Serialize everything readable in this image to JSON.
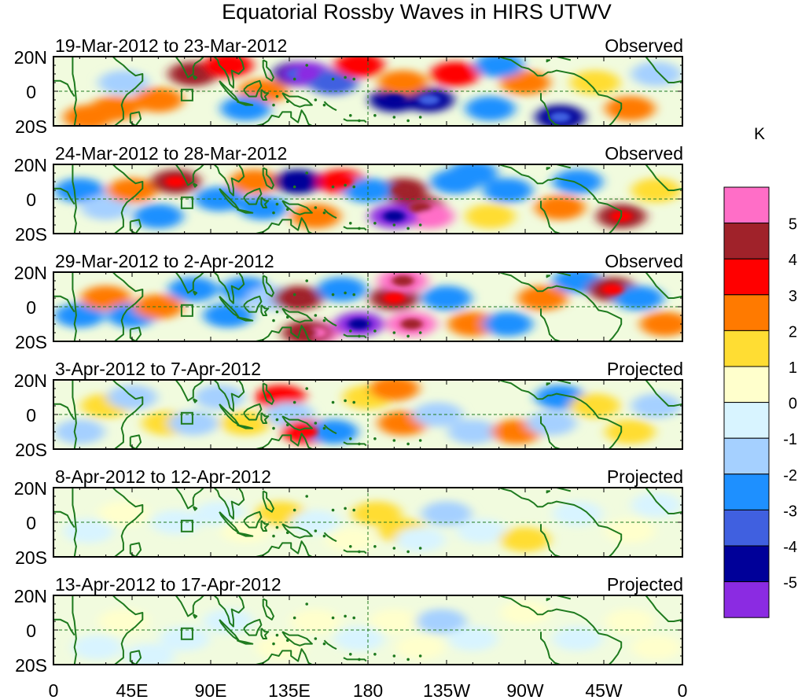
{
  "title": "Equatorial Rossby Waves in HIRS UTWV",
  "colorbar": {
    "unit": "K",
    "labels": [
      "5",
      "4",
      "3",
      "2",
      "1",
      "0",
      "-1",
      "-2",
      "-3",
      "-4",
      "-5"
    ],
    "colors": [
      "#ff6ec7",
      "#a0222a",
      "#ff0000",
      "#ff7a00",
      "#ffdd33",
      "#ffffcc",
      "#d8f4ff",
      "#a5d0ff",
      "#1e90ff",
      "#4060e0",
      "#000099",
      "#8b2be2"
    ]
  },
  "axes": {
    "lat_labels": [
      "20N",
      "0",
      "20S"
    ],
    "lon_labels": [
      "0",
      "45E",
      "90E",
      "135E",
      "180",
      "135W",
      "90W",
      "45W",
      "0"
    ]
  },
  "panels": [
    {
      "date_range": "19-Mar-2012 to 23-Mar-2012",
      "status": "Observed",
      "intensity": 1.0
    },
    {
      "date_range": "24-Mar-2012 to 28-Mar-2012",
      "status": "Observed",
      "intensity": 1.0
    },
    {
      "date_range": "29-Mar-2012 to 2-Apr-2012",
      "status": "Observed",
      "intensity": 1.0
    },
    {
      "date_range": "3-Apr-2012 to 7-Apr-2012",
      "status": "Projected",
      "intensity": 0.75
    },
    {
      "date_range": "8-Apr-2012 to 12-Apr-2012",
      "status": "Projected",
      "intensity": 0.45
    },
    {
      "date_range": "13-Apr-2012 to 17-Apr-2012",
      "status": "Projected",
      "intensity": 0.35
    }
  ],
  "map_colors": {
    "coast": "#1e7a1e",
    "equator": "#1e7a1e"
  }
}
